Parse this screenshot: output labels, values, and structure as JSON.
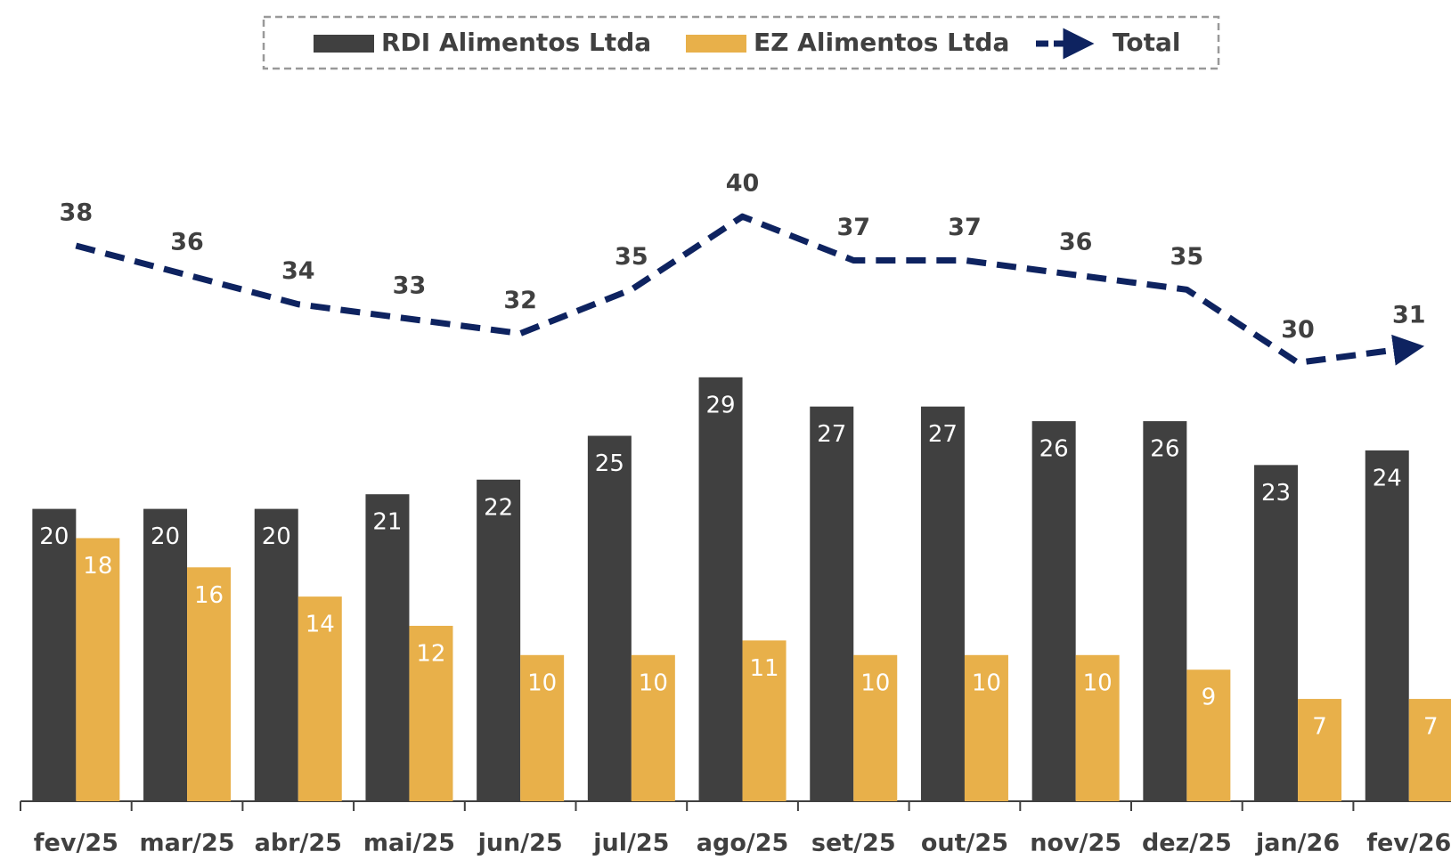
{
  "chart_data": {
    "type": "bar",
    "categories": [
      "fev/25",
      "mar/25",
      "abr/25",
      "mai/25",
      "jun/25",
      "jul/25",
      "ago/25",
      "set/25",
      "out/25",
      "nov/25",
      "dez/25",
      "jan/26",
      "fev/26"
    ],
    "series": [
      {
        "name": "RDI Alimentos Ltda",
        "color": "#404040",
        "type": "bar",
        "values": [
          20,
          20,
          20,
          21,
          22,
          25,
          29,
          27,
          27,
          26,
          26,
          23,
          24
        ]
      },
      {
        "name": "EZ Alimentos Ltda",
        "color": "#e8b04a",
        "type": "bar",
        "values": [
          18,
          16,
          14,
          12,
          10,
          10,
          11,
          10,
          10,
          10,
          9,
          7,
          7
        ]
      },
      {
        "name": "Total",
        "color": "#0e2360",
        "type": "line",
        "values": [
          38,
          36,
          34,
          33,
          32,
          35,
          40,
          37,
          37,
          36,
          35,
          30,
          31
        ]
      }
    ],
    "ylim": [
      0,
      50
    ],
    "legend": "top"
  }
}
